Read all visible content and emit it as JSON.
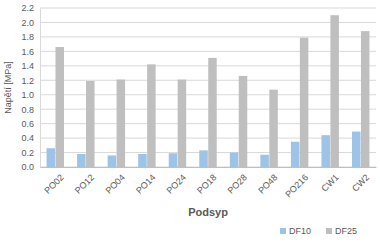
{
  "chart_data": {
    "type": "bar",
    "x_label": "Podsyp",
    "y_label": "Napětí [MPa]",
    "categories": [
      "PO02",
      "PO12",
      "PO04",
      "PO14",
      "PO24",
      "PO18",
      "PO28",
      "PO48",
      "PO216",
      "CW1",
      "CW2"
    ],
    "series": [
      {
        "name": "DF10",
        "color": "#9dc3e6",
        "values": [
          0.26,
          0.18,
          0.16,
          0.18,
          0.19,
          0.23,
          0.2,
          0.17,
          0.35,
          0.44,
          0.49
        ]
      },
      {
        "name": "DF25",
        "color": "#bfbfbf",
        "values": [
          1.66,
          1.19,
          1.21,
          1.42,
          1.21,
          1.51,
          1.26,
          1.07,
          1.79,
          2.1,
          1.88
        ]
      }
    ],
    "ylim": [
      0,
      2.2
    ],
    "yticks": [
      {
        "value": 0,
        "label": "0.0"
      },
      0.2,
      0.4,
      0.6,
      0.8,
      {
        "value": 1,
        "label": "1.0"
      },
      1.2,
      1.4,
      1.6,
      1.8,
      {
        "value": 2,
        "label": "2.0"
      },
      2.2
    ],
    "grid": true,
    "legend": "bottom-right"
  }
}
